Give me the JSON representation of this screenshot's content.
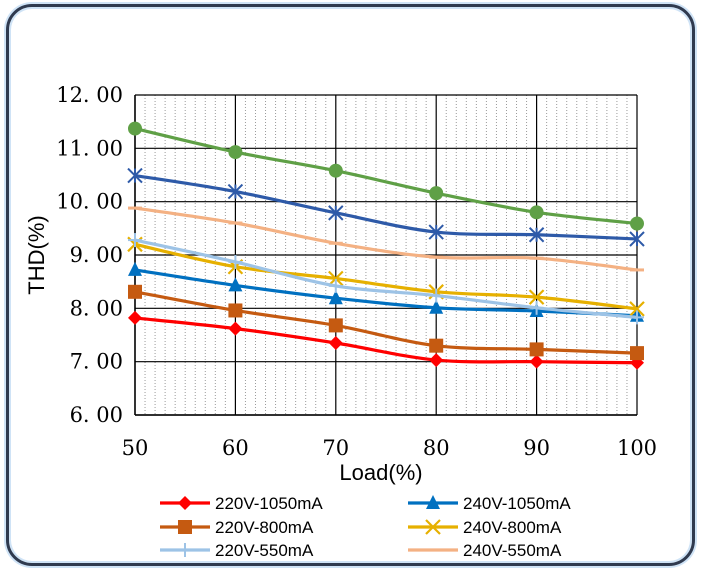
{
  "chart_data": {
    "type": "line",
    "title": "",
    "xlabel": "Load(%)",
    "ylabel": "THD(%)",
    "x": [
      50,
      60,
      70,
      80,
      90,
      100
    ],
    "x_tick_labels": [
      "50",
      "60",
      "70",
      "80",
      "90",
      "100"
    ],
    "xlim": [
      50,
      100
    ],
    "ylim": [
      6.0,
      12.0
    ],
    "y_ticks": [
      6.0,
      7.0,
      8.0,
      9.0,
      10.0,
      11.0,
      12.0
    ],
    "y_tick_labels": [
      "6. 00",
      "7. 00",
      "8. 00",
      "9. 00",
      "10. 00",
      "11. 00",
      "12. 00"
    ],
    "grid": true,
    "legend_position": "bottom",
    "series": [
      {
        "name": "220V-1050mA",
        "color": "#ff0000",
        "marker": "diamond",
        "values": [
          7.82,
          7.62,
          7.35,
          7.03,
          7.0,
          6.98
        ]
      },
      {
        "name": "240V-1050mA",
        "color": "#0070c0",
        "marker": "triangle",
        "values": [
          8.72,
          8.43,
          8.19,
          8.01,
          7.95,
          7.86
        ]
      },
      {
        "name": "220V-800mA",
        "color": "#c55a11",
        "marker": "square",
        "values": [
          8.31,
          7.96,
          7.68,
          7.3,
          7.23,
          7.16
        ]
      },
      {
        "name": "240V-800mA",
        "color": "#e6b000",
        "marker": "x",
        "values": [
          9.2,
          8.78,
          8.56,
          8.31,
          8.21,
          7.99
        ]
      },
      {
        "name": "220V-550mA",
        "color": "#9dc3e6",
        "marker": "plus",
        "values": [
          9.28,
          8.87,
          8.42,
          8.24,
          8.01,
          7.83
        ]
      },
      {
        "name": "240V-550mA",
        "color": "#f4b183",
        "marker": "dash",
        "values": [
          9.88,
          9.6,
          9.22,
          8.96,
          8.94,
          8.72
        ]
      },
      {
        "name": "",
        "color": "#2e5aa8",
        "marker": "asterisk",
        "values": [
          10.49,
          10.19,
          9.79,
          9.43,
          9.38,
          9.3
        ]
      },
      {
        "name": "",
        "color": "#5fa046",
        "marker": "circle",
        "values": [
          11.37,
          10.93,
          10.58,
          10.16,
          9.8,
          9.59
        ]
      }
    ]
  }
}
